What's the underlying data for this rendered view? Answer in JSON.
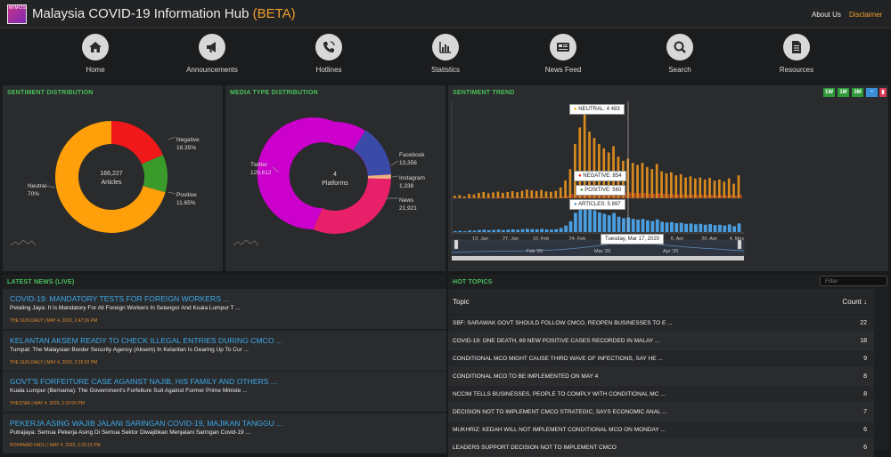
{
  "header": {
    "logo_text": "MIMOS",
    "title": "Malaysia COVID-19 Information Hub",
    "beta": "(BETA)",
    "about": "About Us",
    "disclaimer": "Disclaimer"
  },
  "nav": {
    "items": [
      {
        "label": "Home",
        "icon": "home-icon"
      },
      {
        "label": "Announcements",
        "icon": "megaphone-icon"
      },
      {
        "label": "Hotlines",
        "icon": "phone-icon"
      },
      {
        "label": "Statistics",
        "icon": "bar-chart-icon"
      },
      {
        "label": "News Feed",
        "icon": "newspaper-icon"
      },
      {
        "label": "Search",
        "icon": "search-icon"
      },
      {
        "label": "Resources",
        "icon": "document-icon"
      }
    ]
  },
  "sentiment": {
    "title": "SENTIMENT DISTRIBUTION",
    "center_value": "166,227",
    "center_label": "Articles",
    "negative_label": "Negative",
    "negative_value": "18.35%",
    "positive_label": "Positive",
    "positive_value": "11.65%",
    "neutral_label": "Neutral",
    "neutral_value": "70%",
    "colors": {
      "neutral": "#ff9f0a",
      "negative": "#f01818",
      "positive": "#3a9a2a"
    }
  },
  "media": {
    "title": "MEDIA TYPE DISTRIBUTION",
    "center_value": "4",
    "center_label": "Platforms",
    "twitter_label": "Twitter",
    "twitter_value": "129,612",
    "facebook_label": "Facebook",
    "facebook_value": "13,356",
    "instagram_label": "Instagram",
    "instagram_value": "1,338",
    "news_label": "News",
    "news_value": "21,921",
    "colors": {
      "twitter": "#cc00cc",
      "facebook": "#3a4aa8",
      "instagram": "#f0b080",
      "news": "#e8206a"
    }
  },
  "trend": {
    "title": "SENTIMENT TREND",
    "range_buttons": [
      "1W",
      "1M",
      "3M"
    ],
    "x_ticks": [
      "13. Jan",
      "27. Jan",
      "10. Feb",
      "24. Feb",
      "23. Mar",
      "6. Apr",
      "20. Apr",
      "4. May"
    ],
    "nav_ticks": [
      "Feb '20",
      "Mar '20",
      "Apr '20"
    ],
    "tooltip_date": "Tuesday, Mar 17, 2020",
    "tooltip_neutral": "NEUTRAL: 4 483",
    "tooltip_negative": "NEGATIVE: 854",
    "tooltip_positive": "POSITIVE: 560",
    "tooltip_articles": "ARTICLES: 5 897"
  },
  "chart_data": {
    "type": "bar",
    "title": "SENTIMENT TREND",
    "x_range": [
      "2020-01-06",
      "2020-05-05"
    ],
    "series": [
      {
        "name": "NEUTRAL",
        "values": [
          120,
          150,
          90,
          200,
          180,
          260,
          300,
          240,
          280,
          320,
          260,
          300,
          340,
          290,
          360,
          420,
          380,
          350,
          400,
          330,
          310,
          360,
          520,
          860,
          1400,
          2600,
          3400,
          4483,
          3200,
          2900,
          2600,
          2400,
          2200,
          2500,
          2000,
          1800,
          1900,
          1700,
          1600,
          1700,
          1500,
          1400,
          1650,
          1300,
          1200,
          1250,
          1100,
          1150,
          1000,
          1050,
          950,
          1000,
          900,
          980,
          850,
          900,
          800,
          950,
          700,
          1100
        ]
      },
      {
        "name": "NEGATIVE",
        "values": [
          40,
          50,
          30,
          60,
          55,
          70,
          80,
          65,
          75,
          90,
          70,
          80,
          95,
          85,
          100,
          110,
          105,
          95,
          115,
          90,
          85,
          100,
          140,
          200,
          350,
          560,
          700,
          854,
          700,
          650,
          600,
          560,
          520,
          600,
          480,
          440,
          460,
          420,
          400,
          420,
          380,
          360,
          400,
          340,
          320,
          330,
          300,
          310,
          280,
          290,
          270,
          280,
          260,
          270,
          240,
          250,
          230,
          260,
          210,
          280
        ]
      },
      {
        "name": "POSITIVE",
        "values": [
          25,
          30,
          20,
          35,
          30,
          40,
          45,
          38,
          42,
          50,
          40,
          45,
          55,
          48,
          60,
          65,
          62,
          55,
          68,
          52,
          50,
          58,
          90,
          140,
          250,
          400,
          500,
          560,
          480,
          450,
          420,
          400,
          380,
          420,
          350,
          320,
          340,
          310,
          300,
          310,
          280,
          270,
          300,
          260,
          240,
          250,
          230,
          240,
          220,
          230,
          210,
          220,
          200,
          210,
          190,
          200,
          180,
          200,
          170,
          210
        ]
      }
    ]
  },
  "news": {
    "title": "LATEST NEWS (LIVE)",
    "items": [
      {
        "headline": "COVID-19: MANDATORY TESTS FOR FOREIGN WORKERS ...",
        "snippet": "Petaling Jaya: It Is Mandatory For All Foreign Workers In Selangor And Kuala Lumpur T ...",
        "meta": "THE SUN DAILY | MAY 4, 2020, 2:47:26 PM"
      },
      {
        "headline": "KELANTAN AKSEM READY TO CHECK ILLEGAL ENTRIES DURING CMCO ...",
        "snippet": "Tumpat: The Malaysian Border Security Agency (Aksem) In Kelantan Is Gearing Up To Cur ...",
        "meta": "THE SUN DAILY | MAY 4, 2020, 2:35:53 PM"
      },
      {
        "headline": "GOVT'S FORFEITURE CASE AGAINST NAJIB, HIS FAMILY AND OTHERS ...",
        "snippet": "Kuala Lumpur (Bernama): The Government's Forfeiture Suit Against Former Prime Ministe ...",
        "meta": "THESTAR | MAY 4, 2020, 2:32:00 PM"
      },
      {
        "headline": "PEKERJA ASING WAJIB JALANI SARINGAN COVID-19, MAJIKAN TANGGU ...",
        "snippet": "Putrajaya: Semua Pekerja Asing Di Semua Sektor Diwajibkan Menjalani Saringan Covid-19 ...",
        "meta": "ROHAMAD FADLI | MAY 4, 2020, 2:26:15 PM"
      }
    ]
  },
  "topics": {
    "title": "HOT TOPICS",
    "filter_placeholder": "Filter",
    "col_topic": "Topic",
    "col_count": "Count ↓",
    "rows": [
      {
        "topic": "SBF: SARAWAK GOVT SHOULD FOLLOW CMCO, REOPEN BUSINESSES TO E ...",
        "count": "22"
      },
      {
        "topic": "COVID-19: ONE DEATH, 69 NEW POSITIVE CASES RECORDED IN MALAY ...",
        "count": "18"
      },
      {
        "topic": "CONDITIONAL MCO MIGHT CAUSE THIRD WAVE OF INFECTIONS, SAY HE ...",
        "count": "9"
      },
      {
        "topic": "CONDITIONAL MCO TO BE IMPLEMENTED ON MAY 4",
        "count": "8"
      },
      {
        "topic": "NCCIM TELLS BUSINESSES, PEOPLE TO COMPLY WITH CONDITIONAL MC ...",
        "count": "8"
      },
      {
        "topic": "DECISION NOT TO IMPLEMENT CMCO STRATEGIC, SAYS ECONOMIC ANAL ...",
        "count": "7"
      },
      {
        "topic": "MUKHRIZ: KEDAH WILL NOT IMPLEMENT CONDITIONAL MCO ON MONDAY ...",
        "count": "6"
      },
      {
        "topic": "LEADERS SUPPORT DECISION NOT TO IMPLEMENT CMCO",
        "count": "6"
      }
    ]
  }
}
